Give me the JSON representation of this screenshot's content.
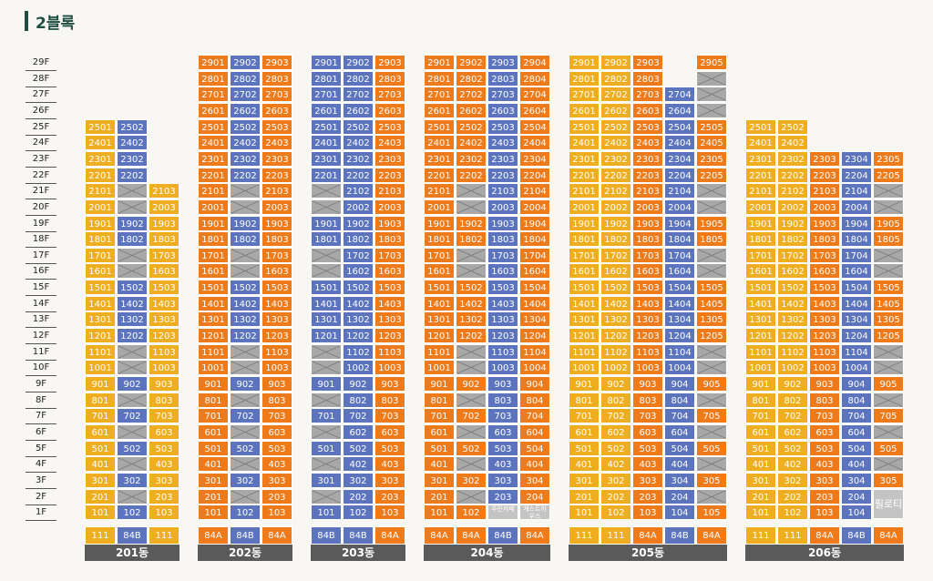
{
  "section_title": "2블록",
  "floors": [
    "29F",
    "28F",
    "27F",
    "26F",
    "25F",
    "24F",
    "23F",
    "22F",
    "21F",
    "20F",
    "19F",
    "18F",
    "17F",
    "16F",
    "15F",
    "14F",
    "13F",
    "12F",
    "11F",
    "10F",
    "9F",
    "8F",
    "7F",
    "6F",
    "5F",
    "4F",
    "3F",
    "2F",
    "1F"
  ],
  "colors": {
    "orange": "#ee7a1a",
    "yellow": "#efae1f",
    "blue": "#5b74bd",
    "vacant": "#a8a8a8",
    "label_bg": "#5a5a5a",
    "title": "#1e4d42"
  },
  "legend_types": {
    "o": "84A",
    "y": "111",
    "b": "84B"
  },
  "buildings": [
    {
      "name": "201동",
      "cols": [
        {
          "type_label": "111",
          "color": "y",
          "top": 25,
          "skip": []
        },
        {
          "type_label": "84B",
          "color": "b",
          "top": 25,
          "skip": [
            21,
            20,
            17,
            16,
            11,
            10,
            8,
            6,
            4,
            2
          ]
        },
        {
          "type_label": "111",
          "color": "y",
          "top": 21,
          "skip": []
        }
      ]
    },
    {
      "name": "202동",
      "cols": [
        {
          "type_label": "84A",
          "color": "o",
          "top": 29,
          "skip": []
        },
        {
          "type_label": "84B",
          "color": "b",
          "top": 29,
          "skip": [
            21,
            20,
            17,
            16,
            11,
            10,
            8,
            6,
            4,
            2
          ]
        },
        {
          "type_label": "84A",
          "color": "o",
          "top": 29,
          "skip": []
        }
      ]
    },
    {
      "name": "203동",
      "cols": [
        {
          "type_label": "84B",
          "color": "b",
          "top": 29,
          "skip": [
            21,
            20,
            17,
            16,
            11,
            10,
            8,
            6,
            4,
            2
          ]
        },
        {
          "type_label": "84B",
          "color": "b",
          "top": 29,
          "skip": []
        },
        {
          "type_label": "84A",
          "color": "o",
          "top": 29,
          "skip": []
        }
      ]
    },
    {
      "name": "204동",
      "cols": [
        {
          "type_label": "84A",
          "color": "o",
          "top": 29,
          "skip": []
        },
        {
          "type_label": "84A",
          "color": "o",
          "top": 29,
          "skip": [
            21,
            20,
            17,
            16,
            11,
            10,
            8,
            6,
            4,
            2
          ],
          "special": {
            "1": "102"
          }
        },
        {
          "type_label": "84B",
          "color": "b",
          "top": 29,
          "skip": [],
          "special": {
            "1": "주민카페"
          }
        },
        {
          "type_label": "84A",
          "color": "o",
          "top": 29,
          "skip": [],
          "special": {
            "1": "게스트하우스"
          }
        }
      ]
    },
    {
      "name": "205동",
      "cols": [
        {
          "type_label": "111",
          "color": "y",
          "top": 29,
          "skip": []
        },
        {
          "type_label": "111",
          "color": "y",
          "top": 29,
          "skip": []
        },
        {
          "type_label": "84A",
          "color": "o",
          "top": 29,
          "skip": []
        },
        {
          "type_label": "84B",
          "color": "b",
          "top": 27,
          "skip": []
        },
        {
          "type_label": "84A",
          "color": "o",
          "top": 29,
          "skip": [
            28,
            27,
            26,
            21,
            20,
            17,
            16,
            11,
            10,
            8,
            6,
            4,
            2
          ]
        }
      ]
    },
    {
      "name": "206동",
      "cols": [
        {
          "type_label": "111",
          "color": "y",
          "top": 25,
          "skip": []
        },
        {
          "type_label": "111",
          "color": "y",
          "top": 25,
          "skip": []
        },
        {
          "type_label": "84A",
          "color": "o",
          "top": 23,
          "skip": []
        },
        {
          "type_label": "84B",
          "color": "b",
          "top": 23,
          "skip": []
        },
        {
          "type_label": "84A",
          "color": "o",
          "top": 23,
          "skip": [
            21,
            20,
            17,
            16,
            11,
            10,
            8,
            6,
            4,
            2
          ],
          "special": {
            "1": "필로티"
          }
        }
      ]
    }
  ]
}
